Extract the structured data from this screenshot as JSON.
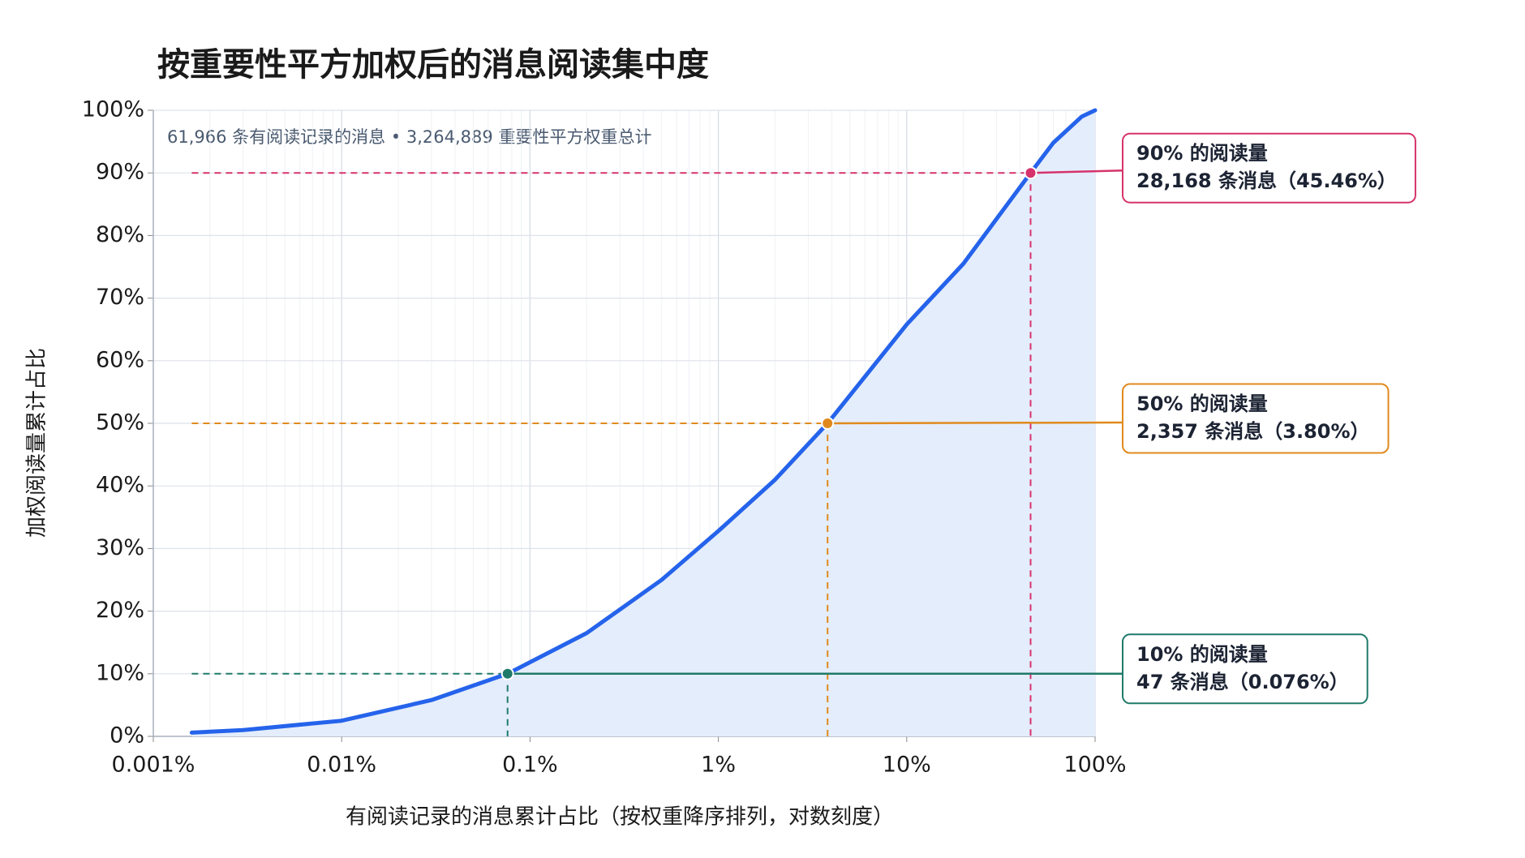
{
  "chart_data": {
    "type": "line",
    "title": "按重要性平方加权后的消息阅读集中度",
    "subtitle": "61,966 条有阅读记录的消息 • 3,264,889 重要性平方权重总计",
    "x_label": "有阅读记录的消息累计占比（按权重降序排列，对数刻度）",
    "y_label": "加权阅读量累计占比",
    "x_scale": "log",
    "grid": true,
    "x": [
      0.0016,
      0.003,
      0.01,
      0.03,
      0.076,
      0.2,
      0.5,
      1,
      2,
      3.8,
      10,
      20,
      45.46,
      60,
      85,
      100
    ],
    "series": [
      {
        "name": "加权阅读量累计占比",
        "color": "#2563eb",
        "fill": "#e4edfb",
        "values": [
          0.6,
          1.0,
          2.5,
          5.8,
          10,
          16.5,
          25,
          32.8,
          41,
          50,
          65.8,
          75.5,
          90,
          94.8,
          99,
          100
        ]
      }
    ],
    "xlim": [
      0.001,
      100
    ],
    "xticks": [
      {
        "value": 0.001,
        "label": "0.001%"
      },
      {
        "value": 0.01,
        "label": "0.01%"
      },
      {
        "value": 0.1,
        "label": "0.1%"
      },
      {
        "value": 1,
        "label": "1%"
      },
      {
        "value": 10,
        "label": "10%"
      },
      {
        "value": 100,
        "label": "100%"
      }
    ],
    "ylim": [
      0,
      100
    ],
    "yticks": [
      {
        "value": 0,
        "label": "0%"
      },
      {
        "value": 10,
        "label": "10%"
      },
      {
        "value": 20,
        "label": "20%"
      },
      {
        "value": 30,
        "label": "30%"
      },
      {
        "value": 40,
        "label": "40%"
      },
      {
        "value": 50,
        "label": "50%"
      },
      {
        "value": 60,
        "label": "60%"
      },
      {
        "value": 70,
        "label": "70%"
      },
      {
        "value": 80,
        "label": "80%"
      },
      {
        "value": 90,
        "label": "90%"
      },
      {
        "value": 100,
        "label": "100%"
      }
    ],
    "annotations": [
      {
        "x": 45.46,
        "y": 90,
        "color": "#d6336c",
        "lines": [
          "90% 的阅读量",
          "28,168 条消息（45.46%）"
        ]
      },
      {
        "x": 3.8,
        "y": 50,
        "color": "#e08a1e",
        "lines": [
          "50% 的阅读量",
          "2,357 条消息（3.80%）"
        ]
      },
      {
        "x": 0.076,
        "y": 10,
        "color": "#1f7a6a",
        "lines": [
          "10% 的阅读量",
          "47 条消息（0.076%）"
        ]
      }
    ]
  }
}
